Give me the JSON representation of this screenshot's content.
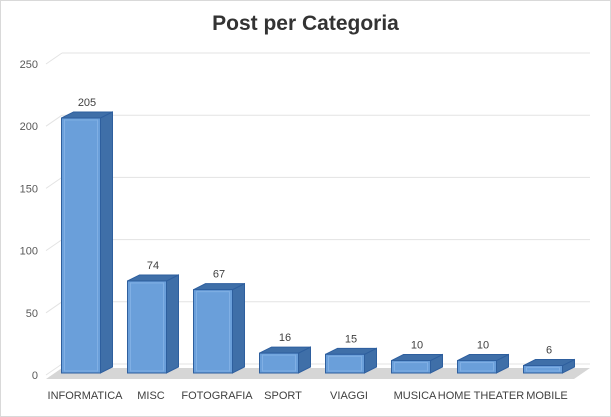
{
  "chart_data": {
    "type": "bar",
    "title": "Post per Categoria",
    "categories": [
      "INFORMATICA",
      "MISC",
      "FOTOGRAFIA",
      "SPORT",
      "VIAGGI",
      "MUSICA",
      "HOME THEATER",
      "MOBILE"
    ],
    "values": [
      205,
      74,
      67,
      16,
      15,
      10,
      10,
      6
    ],
    "data_labels": [
      "205",
      "74",
      "67",
      "16",
      "15",
      "10",
      "10",
      "6"
    ],
    "ylim": [
      0,
      250
    ],
    "yticks": [
      "0",
      "50",
      "100",
      "150",
      "200",
      "250"
    ],
    "grid": true,
    "legend": "none",
    "style": "3d-column",
    "colors": {
      "bar_front": "#6a9fda",
      "bar_top": "#3f6fa8",
      "bar_side": "#3f6fa8",
      "bar_edge": "#2e5f9e",
      "grid": "#e3e3e3",
      "floor": "#d6d6d6"
    }
  }
}
